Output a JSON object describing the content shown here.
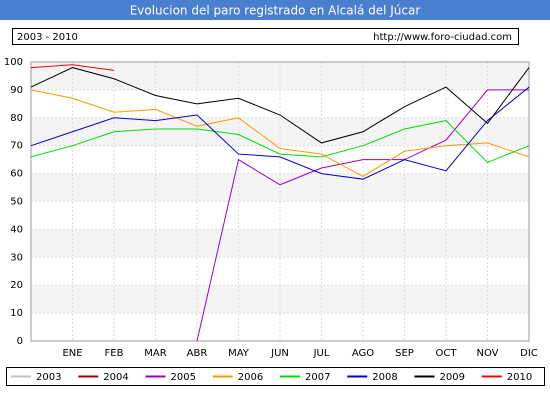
{
  "chart_data": {
    "type": "line",
    "title": "Evolucion del paro registrado en Alcalá del Júcar",
    "period": "2003 - 2010",
    "source": "http://www.foro-ciudad.com",
    "categories": [
      null,
      "ENE",
      "FEB",
      "MAR",
      "ABR",
      "MAY",
      "JUN",
      "JUL",
      "AGO",
      "SEP",
      "OCT",
      "NOV",
      "DIC"
    ],
    "ylim": [
      0,
      100
    ],
    "yticks": [
      0,
      10,
      20,
      30,
      40,
      50,
      60,
      70,
      80,
      90,
      100
    ],
    "grid": true,
    "legend": "bottom",
    "series": [
      {
        "name": "2003",
        "color": "#c0c0c0",
        "values": [
          null,
          null,
          null,
          null,
          null,
          null,
          null,
          null,
          null,
          null,
          null,
          null,
          null
        ]
      },
      {
        "name": "2004",
        "color": "#aa0000",
        "values": [
          null,
          null,
          null,
          null,
          null,
          null,
          null,
          null,
          null,
          null,
          null,
          null,
          null
        ]
      },
      {
        "name": "2005",
        "color": "#9900cc",
        "values": [
          null,
          null,
          null,
          null,
          0,
          65,
          56,
          62,
          65,
          65,
          72,
          90,
          90
        ]
      },
      {
        "name": "2006",
        "color": "#ff9900",
        "values": [
          90,
          87,
          82,
          83,
          77,
          80,
          69,
          67,
          59,
          68,
          70,
          71,
          66
        ]
      },
      {
        "name": "2007",
        "color": "#00dd00",
        "values": [
          66,
          70,
          75,
          76,
          76,
          74,
          67,
          66,
          70,
          76,
          79,
          64,
          70
        ]
      },
      {
        "name": "2008",
        "color": "#0000cc",
        "values": [
          70,
          75,
          80,
          79,
          81,
          67,
          66,
          60,
          58,
          65,
          61,
          79,
          91
        ]
      },
      {
        "name": "2009",
        "color": "#000000",
        "values": [
          91,
          98,
          94,
          88,
          85,
          87,
          81,
          71,
          75,
          84,
          91,
          78,
          98
        ]
      },
      {
        "name": "2010",
        "color": "#ff0000",
        "values": [
          98,
          99,
          97,
          null,
          null,
          null,
          null,
          null,
          null,
          null,
          null,
          null,
          null
        ]
      }
    ]
  }
}
